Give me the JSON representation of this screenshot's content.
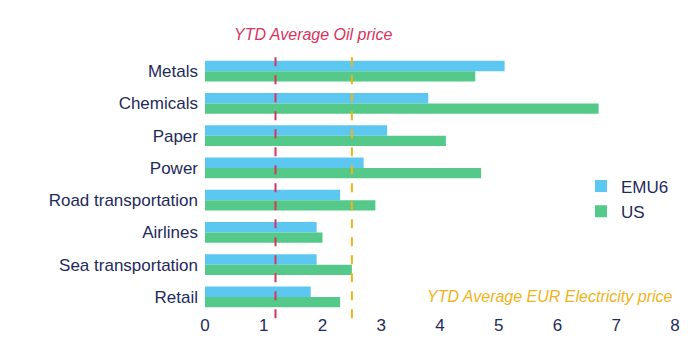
{
  "chart_data": {
    "type": "bar",
    "orientation": "horizontal",
    "categories": [
      "Metals",
      "Chemicals",
      "Paper",
      "Power",
      "Road transportation",
      "Airlines",
      "Sea transportation",
      "Retail"
    ],
    "series": [
      {
        "name": "EMU6",
        "color": "#5cc8f2",
        "values": [
          5.1,
          3.8,
          3.1,
          2.7,
          2.3,
          1.9,
          1.9,
          1.8
        ]
      },
      {
        "name": "US",
        "color": "#55c98a",
        "values": [
          4.6,
          6.7,
          4.1,
          4.7,
          2.9,
          2.0,
          2.5,
          2.3
        ]
      }
    ],
    "xlim": [
      0,
      8
    ],
    "xticks": [
      0,
      1,
      2,
      3,
      4,
      5,
      6,
      7,
      8
    ],
    "grid": false,
    "legend": "right",
    "reference_lines": [
      {
        "value": 1.2,
        "label": "YTD Average Oil price",
        "color": "#d6345c",
        "line_style": "dash"
      },
      {
        "value": 2.5,
        "label": "YTD Average EUR Electricity price",
        "color": "#f0b31a",
        "line_style": "dash"
      }
    ]
  }
}
